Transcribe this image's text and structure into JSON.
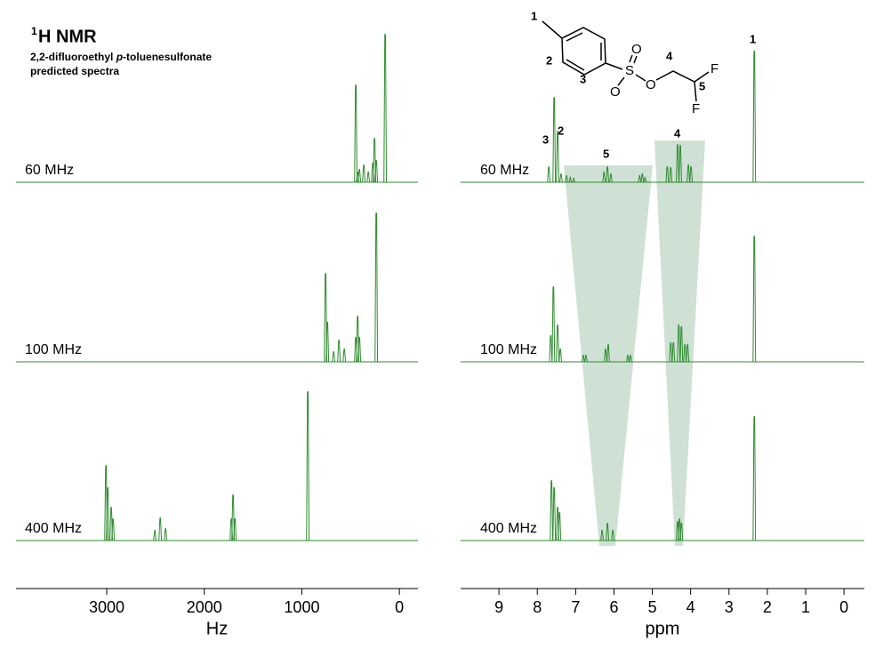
{
  "title_sup": "1",
  "title": "H NMR",
  "subtitle": [
    "2,2-difluoroethyl ",
    "p",
    "-toluenesulfonate",
    "predicted spectra"
  ],
  "structure": {
    "labels": [
      "1",
      "2",
      "3",
      "4",
      "5"
    ],
    "atoms": [
      "S",
      "O",
      "O",
      "O",
      "F",
      "F"
    ]
  },
  "chart_data": [
    {
      "type": "spectrum",
      "xlabel": "Hz",
      "xlim": [
        3930,
        -190
      ],
      "xticks": [
        3000,
        2000,
        1000,
        0
      ],
      "ylim": [
        0,
        170
      ],
      "series": [
        {
          "name": "60 MHz",
          "color": "#2e8b2e",
          "x": [
            447,
            428,
            410,
            365,
            319,
            273,
            255,
            237,
            146
          ],
          "values": [
            110,
            12,
            15,
            20,
            12,
            22,
            50,
            25,
            167
          ]
        },
        {
          "name": "100 MHz",
          "color": "#2e8b2e",
          "x": [
            757,
            738,
            675,
            620,
            565,
            447,
            428,
            410,
            237
          ],
          "values": [
            100,
            45,
            12,
            25,
            15,
            28,
            52,
            28,
            168
          ]
        },
        {
          "name": "400 MHz",
          "color": "#2e8b2e",
          "x": [
            3008,
            2990,
            2954,
            2935,
            2507,
            2452,
            2397,
            1723,
            1705,
            1686,
            939
          ],
          "values": [
            85,
            60,
            38,
            25,
            12,
            26,
            14,
            25,
            52,
            25,
            168
          ]
        }
      ]
    },
    {
      "type": "spectrum",
      "xlabel": "ppm",
      "xlim": [
        10,
        -0.53
      ],
      "xticks": [
        9,
        8,
        7,
        6,
        5,
        4,
        3,
        2,
        1,
        0
      ],
      "ylim": [
        0,
        170
      ],
      "annotations": [
        "3",
        "2",
        "5",
        "4",
        "1"
      ],
      "series": [
        {
          "name": "60 MHz",
          "color": "#2e8b2e",
          "x": [
            7.7,
            7.56,
            7.47,
            7.38,
            7.24,
            7.14,
            7.05,
            6.26,
            6.17,
            6.08,
            5.33,
            5.26,
            5.19,
            4.61,
            4.52,
            4.34,
            4.27,
            4.06,
            3.99,
            2.34
          ],
          "values": [
            18,
            96,
            58,
            10,
            8,
            6,
            5,
            12,
            18,
            10,
            8,
            10,
            6,
            18,
            17,
            43,
            42,
            20,
            18,
            148
          ]
        },
        {
          "name": "100 MHz",
          "color": "#2e8b2e",
          "x": [
            7.65,
            7.58,
            7.47,
            7.4,
            6.8,
            6.73,
            6.22,
            6.15,
            5.64,
            5.57,
            4.52,
            4.45,
            4.31,
            4.24,
            4.15,
            4.08,
            2.34
          ],
          "values": [
            30,
            85,
            42,
            15,
            8,
            8,
            15,
            20,
            8,
            8,
            22,
            22,
            42,
            40,
            20,
            20,
            142
          ]
        },
        {
          "name": "400 MHz",
          "color": "#2e8b2e",
          "x": [
            7.63,
            7.56,
            7.47,
            7.42,
            6.31,
            6.17,
            6.03,
            4.34,
            4.29,
            4.24,
            2.34
          ],
          "values": [
            68,
            60,
            38,
            32,
            12,
            20,
            12,
            22,
            25,
            20,
            140
          ]
        }
      ]
    }
  ]
}
